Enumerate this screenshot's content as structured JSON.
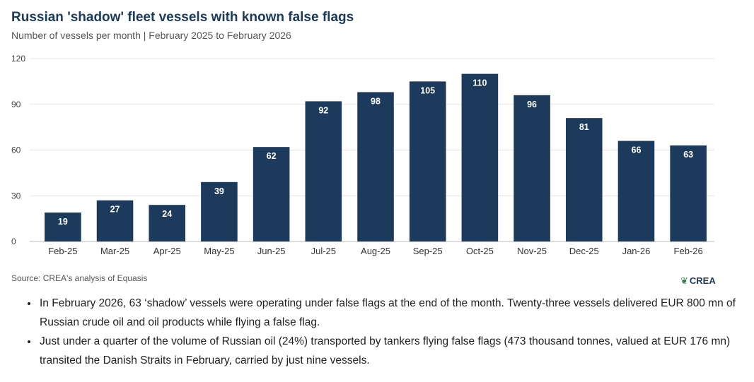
{
  "header": {
    "title": "Russian 'shadow' fleet vessels with known false flags",
    "subtitle": "Number of vessels per month | February 2025 to February 2026"
  },
  "chart_data": {
    "type": "bar",
    "title": "Russian 'shadow' fleet vessels with known false flags",
    "subtitle": "Number of vessels per month | February 2025 to February 2026",
    "xlabel": "",
    "ylabel": "",
    "categories": [
      "Feb-25",
      "Mar-25",
      "Apr-25",
      "May-25",
      "Jun-25",
      "Jul-25",
      "Aug-25",
      "Sep-25",
      "Oct-25",
      "Nov-25",
      "Dec-25",
      "Jan-26",
      "Feb-26"
    ],
    "values": [
      19,
      27,
      24,
      39,
      62,
      92,
      98,
      105,
      110,
      96,
      81,
      66,
      63
    ],
    "ylim": [
      0,
      120
    ],
    "yticks": [
      0,
      30,
      60,
      90,
      120
    ],
    "grid": true,
    "bar_color": "#1b3a5c",
    "label_color": "#ffffff"
  },
  "footer": {
    "source": "Source: CREA's analysis of Equasis",
    "logo_text": "CREA",
    "logo_icon": "leaf-icon"
  },
  "notes": [
    "In February 2026, 63 ‘shadow’ vessels were operating under false flags at the end of the month. Twenty-three vessels delivered EUR 800 mn of Russian crude oil and oil products while flying a false flag.",
    "Just under a quarter of the volume of Russian oil (24%) transported by tankers flying false flags (473 thousand tonnes, valued at EUR 176 mn) transited the Danish Straits in February, carried by just nine vessels."
  ]
}
